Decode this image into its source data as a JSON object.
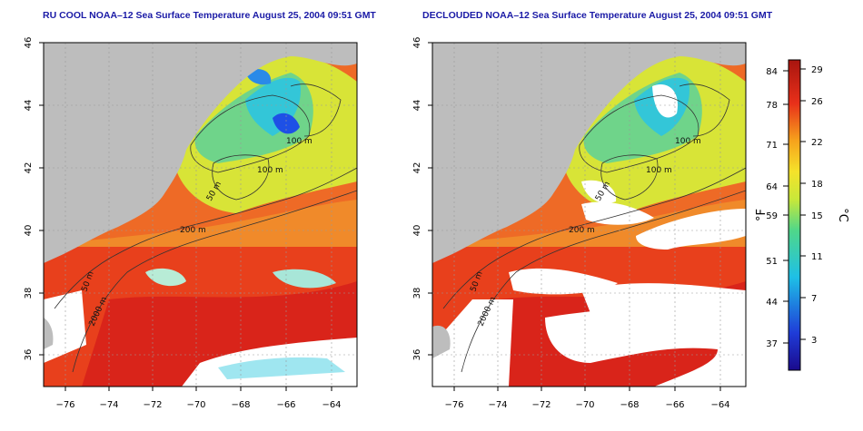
{
  "panels": [
    {
      "title": "RU COOL NOAA–12 Sea Surface Temperature August 25, 2004 09:51 GMT",
      "depth_labels": [
        "100 m",
        "100 m",
        "50 m",
        "200 m",
        "50 m",
        "2000 m"
      ]
    },
    {
      "title": "DECLOUDED NOAA–12 Sea Surface Temperature August 25, 2004 09:51 GMT",
      "depth_labels": [
        "100 m",
        "100 m",
        "50 m",
        "200 m",
        "50 m",
        "2000 m"
      ]
    }
  ],
  "axes": {
    "x_ticks": [
      "−76",
      "−74",
      "−72",
      "−70",
      "−68",
      "−66",
      "−64"
    ],
    "y_ticks": [
      "36",
      "38",
      "40",
      "42",
      "44",
      "46"
    ],
    "lon_range": [
      -77,
      -63
    ],
    "lat_range": [
      35,
      46
    ]
  },
  "colorbar": {
    "fahrenheit_label": "°F",
    "celsius_label": "°C",
    "fahrenheit_ticks": [
      "84",
      "78",
      "71",
      "64",
      "59",
      "51",
      "44",
      "37"
    ],
    "celsius_ticks": [
      "29",
      "26",
      "22",
      "18",
      "15",
      "11",
      "7",
      "3"
    ],
    "range_c": [
      0,
      30
    ]
  },
  "colors": {
    "land": "#bdbdbd",
    "cloud": "#ffffff",
    "warm": "#e8301a",
    "cold": "#1e50e6",
    "title": "#1a1aa6"
  }
}
